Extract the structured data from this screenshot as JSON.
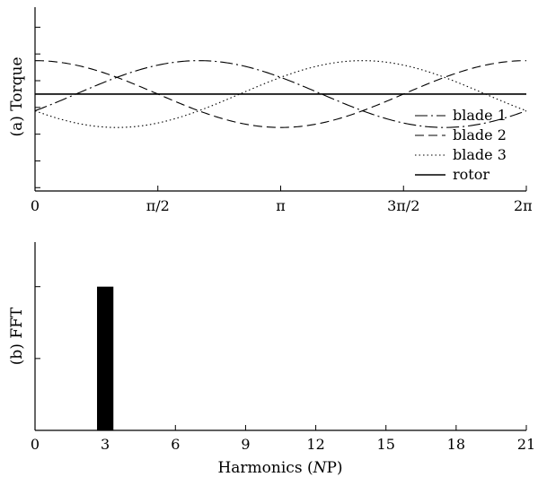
{
  "chart_data": [
    {
      "type": "line",
      "panel_label": "(a) Torque",
      "x_unit": "radians (one rotor revolution)",
      "xlim": [
        0,
        6.2832
      ],
      "ylim": [
        -1.45,
        1.3
      ],
      "x_ticks": [
        {
          "value": 0,
          "label": "0"
        },
        {
          "value": 1.5708,
          "label": "π/2"
        },
        {
          "value": 3.1416,
          "label": "π"
        },
        {
          "value": 4.7124,
          "label": "3π/2"
        },
        {
          "value": 6.2832,
          "label": "2π"
        }
      ],
      "y_ticks_values": [
        1.0,
        0.6,
        0.2,
        -0.2,
        -0.6,
        -1.0,
        -1.4
      ],
      "series": [
        {
          "name": "blade 1",
          "style": "dash-dot",
          "amplitude": 0.5,
          "phase_rad": -2.0944,
          "x": [
            0,
            0.5236,
            1.0472,
            1.5708,
            2.0944,
            2.618,
            3.1416,
            3.6652,
            4.1888,
            4.7124,
            5.236,
            5.7596,
            6.2832
          ],
          "y": [
            -0.25,
            -0.433,
            -0.5,
            -0.433,
            -0.25,
            0.0,
            0.25,
            0.433,
            0.5,
            0.433,
            0.25,
            0.0,
            -0.25
          ]
        },
        {
          "name": "blade 2",
          "style": "dashed",
          "amplitude": 0.5,
          "phase_rad": 0,
          "x": [
            0,
            0.5236,
            1.0472,
            1.5708,
            2.0944,
            2.618,
            3.1416,
            3.6652,
            4.1888,
            4.7124,
            5.236,
            5.7596,
            6.2832
          ],
          "y": [
            0.5,
            0.433,
            0.25,
            0.0,
            -0.25,
            -0.433,
            -0.5,
            -0.433,
            -0.25,
            0.0,
            0.25,
            0.433,
            0.5
          ]
        },
        {
          "name": "blade 3",
          "style": "dotted",
          "amplitude": 0.5,
          "phase_rad": 2.0944,
          "x": [
            0,
            0.5236,
            1.0472,
            1.5708,
            2.0944,
            2.618,
            3.1416,
            3.6652,
            4.1888,
            4.7124,
            5.236,
            5.7596,
            6.2832
          ],
          "y": [
            -0.25,
            0.0,
            0.25,
            0.433,
            0.5,
            0.433,
            0.25,
            0.0,
            -0.25,
            -0.433,
            -0.5,
            -0.433,
            -0.25
          ]
        },
        {
          "name": "rotor",
          "style": "solid",
          "x": [
            0,
            6.2832
          ],
          "y": [
            0,
            0
          ]
        }
      ],
      "legend_position": "bottom-right"
    },
    {
      "type": "bar",
      "panel_label": "(b) FFT",
      "xlabel": "Harmonics (NP)",
      "xlim": [
        0,
        21
      ],
      "ylim": [
        0,
        1.31
      ],
      "x_ticks": [
        0,
        3,
        6,
        9,
        12,
        15,
        18,
        21
      ],
      "y_ticks_values": [
        1.0,
        0.5
      ],
      "bars": [
        {
          "x": 3,
          "value": 1.0
        }
      ],
      "bar_width": 0.7
    }
  ]
}
